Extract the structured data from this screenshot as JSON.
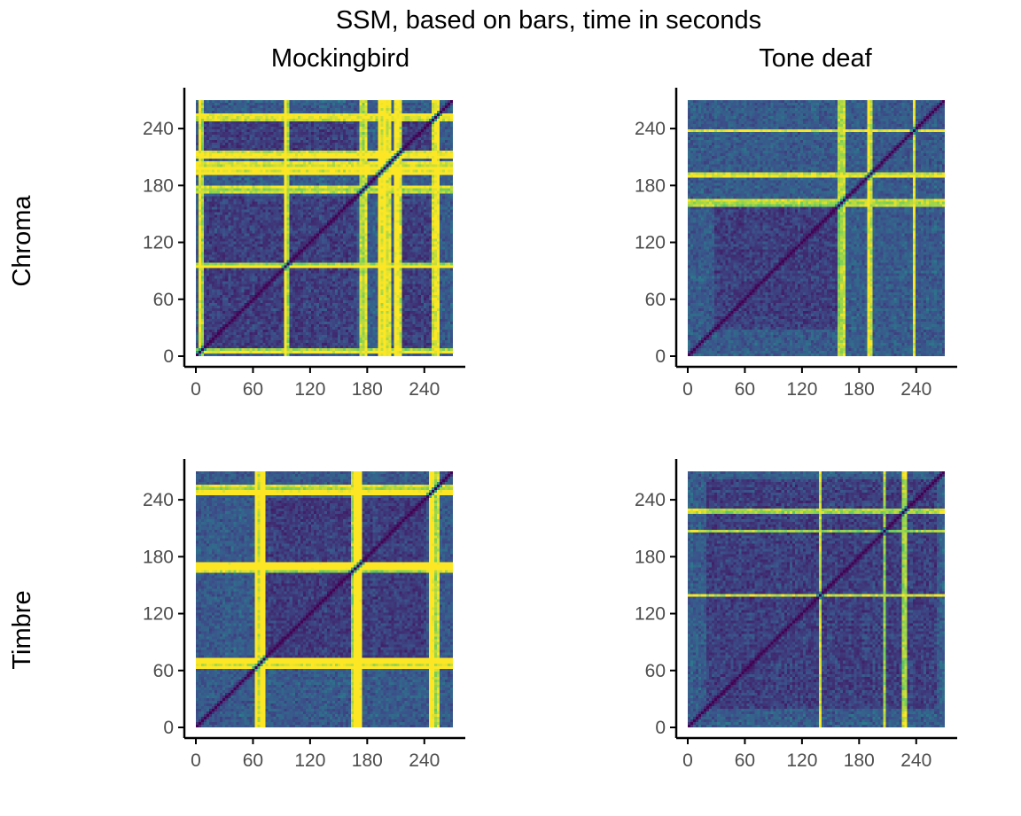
{
  "figure": {
    "title": "SSM, based on bars, time in seconds",
    "columns": [
      "Mockingbird",
      "Tone deaf"
    ],
    "rows": [
      "Chroma",
      "Timbre"
    ]
  },
  "colors": {
    "palette": [
      "#440154",
      "#3b528b",
      "#21918c",
      "#5ec962",
      "#fde725"
    ],
    "axis": "#000000",
    "tick_label": "#4d4d4d"
  },
  "chart_data": [
    {
      "type": "heatmap",
      "row": "Chroma",
      "column": "Mockingbird",
      "title": "",
      "xlabel": "",
      "ylabel": "",
      "xlim": [
        0,
        270
      ],
      "ylim": [
        0,
        270
      ],
      "x_ticks": [
        0,
        60,
        120,
        180,
        240
      ],
      "y_ticks": [
        0,
        60,
        120,
        180,
        240
      ],
      "tick_labels": [
        "0",
        "60",
        "120",
        "180",
        "240"
      ],
      "diagonal": "minimum",
      "bright_bands_s": [
        [
          4,
          6
        ],
        [
          93,
          96
        ],
        [
          173,
          178
        ],
        [
          194,
          204
        ],
        [
          210,
          214
        ],
        [
          250,
          254
        ]
      ],
      "dark_blocks_s": [
        [
          10,
          90
        ],
        [
          100,
          168
        ],
        [
          215,
          245
        ]
      ]
    },
    {
      "type": "heatmap",
      "row": "Chroma",
      "column": "Tone deaf",
      "title": "",
      "xlabel": "",
      "ylabel": "",
      "xlim": [
        0,
        270
      ],
      "ylim": [
        0,
        270
      ],
      "x_ticks": [
        0,
        60,
        120,
        180,
        240
      ],
      "y_ticks": [
        0,
        60,
        120,
        180,
        240
      ],
      "tick_labels": [
        "0",
        "60",
        "120",
        "180",
        "240"
      ],
      "diagonal": "minimum",
      "bright_bands_s": [
        [
          160,
          164
        ],
        [
          190,
          193
        ],
        [
          237,
          239
        ]
      ],
      "dark_blocks_s": [
        [
          30,
          160
        ]
      ]
    },
    {
      "type": "heatmap",
      "row": "Timbre",
      "column": "Mockingbird",
      "title": "",
      "xlabel": "",
      "ylabel": "",
      "xlim": [
        0,
        270
      ],
      "ylim": [
        0,
        270
      ],
      "x_ticks": [
        0,
        60,
        120,
        180,
        240
      ],
      "y_ticks": [
        0,
        60,
        120,
        180,
        240
      ],
      "tick_labels": [
        "0",
        "60",
        "120",
        "180",
        "240"
      ],
      "diagonal": "minimum",
      "bright_bands_s": [
        [
          64,
          72
        ],
        [
          165,
          172
        ],
        [
          245,
          255
        ]
      ],
      "dark_blocks_s": [
        [
          75,
          165
        ],
        [
          175,
          240
        ]
      ]
    },
    {
      "type": "heatmap",
      "row": "Timbre",
      "column": "Tone deaf",
      "title": "",
      "xlabel": "",
      "ylabel": "",
      "xlim": [
        0,
        270
      ],
      "ylim": [
        0,
        270
      ],
      "x_ticks": [
        0,
        60,
        120,
        180,
        240
      ],
      "y_ticks": [
        0,
        60,
        120,
        180,
        240
      ],
      "tick_labels": [
        "0",
        "60",
        "120",
        "180",
        "240"
      ],
      "diagonal": "minimum",
      "bright_bands_s": [
        [
          138,
          139
        ],
        [
          206,
          207
        ],
        [
          227,
          228
        ]
      ],
      "dark_blocks_s": [
        [
          20,
          260
        ]
      ]
    }
  ]
}
